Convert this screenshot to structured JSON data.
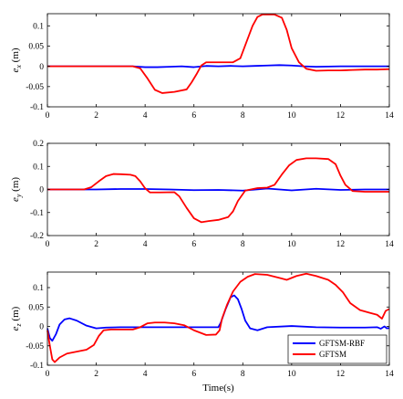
{
  "figure": {
    "xlabel": "Time(s)",
    "legend": {
      "placement": "bottom-right",
      "entries": [
        "GFTSM-RBF",
        "GFTSM"
      ]
    }
  },
  "colors": {
    "GFTSM-RBF": "#0000ff",
    "GFTSM": "#ff0000",
    "axes": "#000000",
    "background": "#ffffff"
  },
  "chart_data": [
    {
      "type": "line",
      "ylabel_sym": "e",
      "ylabel_sub": "x",
      "ylabel_unit": " (m)",
      "xlim": [
        0,
        14
      ],
      "ylim": [
        -0.1,
        0.13
      ],
      "xticks": [
        0,
        2,
        4,
        6,
        8,
        10,
        12,
        14
      ],
      "yticks": [
        -0.1,
        -0.05,
        0,
        0.05,
        0.1
      ],
      "ytick_labels": [
        "-0.1",
        "-0.05",
        "0",
        "0.05",
        "0.1"
      ],
      "grid": false,
      "series": [
        {
          "name": "GFTSM",
          "x": [
            0,
            3.5,
            3.8,
            4.1,
            4.4,
            4.7,
            5.2,
            5.7,
            5.9,
            6.1,
            6.3,
            6.5,
            6.8,
            7.3,
            7.6,
            7.9,
            8.15,
            8.4,
            8.6,
            8.8,
            9.0,
            9.3,
            9.6,
            9.8,
            10.0,
            10.3,
            10.6,
            11.0,
            11.5,
            12.0,
            12.5,
            13.0,
            13.5,
            14.0
          ],
          "y": [
            0,
            0,
            -0.005,
            -0.03,
            -0.058,
            -0.066,
            -0.063,
            -0.057,
            -0.04,
            -0.02,
            0.002,
            0.01,
            0.01,
            0.01,
            0.01,
            0.02,
            0.06,
            0.1,
            0.122,
            0.128,
            0.128,
            0.128,
            0.12,
            0.09,
            0.045,
            0.01,
            -0.006,
            -0.011,
            -0.01,
            -0.01,
            -0.009,
            -0.008,
            -0.008,
            -0.007
          ]
        },
        {
          "name": "GFTSM-RBF",
          "x": [
            0,
            3.5,
            4.0,
            4.5,
            5.0,
            5.5,
            6.0,
            6.5,
            7.0,
            7.5,
            8.0,
            8.5,
            9.0,
            9.5,
            10.0,
            10.5,
            11.0,
            12.0,
            13.0,
            14.0
          ],
          "y": [
            0,
            0,
            -0.002,
            -0.002,
            -0.001,
            0,
            -0.002,
            0.001,
            0,
            0.001,
            0,
            0.001,
            0.002,
            0.003,
            0.002,
            0,
            -0.001,
            0,
            0,
            0
          ]
        }
      ]
    },
    {
      "type": "line",
      "ylabel_sym": "e",
      "ylabel_sub": "y",
      "ylabel_unit": " (m)",
      "xlim": [
        0,
        14
      ],
      "ylim": [
        -0.2,
        0.2
      ],
      "xticks": [
        0,
        2,
        4,
        6,
        8,
        10,
        12,
        14
      ],
      "yticks": [
        -0.2,
        -0.1,
        0,
        0.1,
        0.2
      ],
      "ytick_labels": [
        "-0.2",
        "-0.1",
        "0",
        "0.1",
        "0.2"
      ],
      "grid": false,
      "series": [
        {
          "name": "GFTSM",
          "x": [
            0,
            1.5,
            1.8,
            2.1,
            2.4,
            2.7,
            3.0,
            3.4,
            3.6,
            3.8,
            4.0,
            4.2,
            4.6,
            5.2,
            5.4,
            5.7,
            6.0,
            6.3,
            6.6,
            7.0,
            7.4,
            7.6,
            7.8,
            8.1,
            8.6,
            9.0,
            9.3,
            9.6,
            9.9,
            10.2,
            10.6,
            11.0,
            11.5,
            11.8,
            12.0,
            12.2,
            12.5,
            13.0,
            13.5,
            14.0
          ],
          "y": [
            0,
            0,
            0.01,
            0.035,
            0.058,
            0.067,
            0.066,
            0.064,
            0.058,
            0.035,
            0.005,
            -0.013,
            -0.013,
            -0.012,
            -0.03,
            -0.08,
            -0.125,
            -0.142,
            -0.137,
            -0.132,
            -0.12,
            -0.095,
            -0.05,
            -0.005,
            0.006,
            0.008,
            0.02,
            0.065,
            0.105,
            0.128,
            0.135,
            0.135,
            0.132,
            0.11,
            0.06,
            0.02,
            -0.007,
            -0.01,
            -0.01,
            -0.01
          ]
        },
        {
          "name": "GFTSM-RBF",
          "x": [
            0,
            2,
            3,
            4,
            5,
            6,
            7,
            8,
            9,
            10,
            11,
            12,
            13,
            14
          ],
          "y": [
            0,
            0,
            0.002,
            0.002,
            0,
            -0.003,
            -0.002,
            -0.005,
            0.004,
            -0.004,
            0.003,
            -0.002,
            0,
            0
          ]
        }
      ]
    },
    {
      "type": "line",
      "ylabel_sym": "e",
      "ylabel_sub": "z",
      "ylabel_unit": " (m)",
      "xlim": [
        0,
        14
      ],
      "ylim": [
        -0.1,
        0.14
      ],
      "xticks": [
        0,
        2,
        4,
        6,
        8,
        10,
        12,
        14
      ],
      "yticks": [
        -0.1,
        -0.05,
        0,
        0.05,
        0.1
      ],
      "ytick_labels": [
        "-0.1",
        "-0.05",
        "0",
        "0.05",
        "0.1"
      ],
      "grid": false,
      "series": [
        {
          "name": "GFTSM",
          "x": [
            0,
            0.1,
            0.2,
            0.3,
            0.5,
            0.8,
            1.2,
            1.6,
            1.9,
            2.1,
            2.3,
            2.6,
            3.0,
            3.5,
            3.8,
            4.1,
            4.4,
            4.8,
            5.2,
            5.6,
            6.0,
            6.5,
            6.9,
            7.05,
            7.15,
            7.35,
            7.6,
            7.9,
            8.2,
            8.5,
            9.0,
            9.5,
            9.8,
            10.2,
            10.6,
            11.0,
            11.5,
            11.8,
            12.1,
            12.4,
            12.8,
            13.2,
            13.5,
            13.7,
            13.85,
            14.0
          ],
          "y": [
            -0.01,
            -0.05,
            -0.085,
            -0.092,
            -0.08,
            -0.07,
            -0.065,
            -0.06,
            -0.048,
            -0.025,
            -0.01,
            -0.008,
            -0.008,
            -0.008,
            -0.002,
            0.008,
            0.01,
            0.01,
            0.008,
            0.003,
            -0.01,
            -0.022,
            -0.021,
            -0.01,
            0.02,
            0.055,
            0.09,
            0.115,
            0.128,
            0.135,
            0.133,
            0.125,
            0.12,
            0.13,
            0.136,
            0.13,
            0.12,
            0.107,
            0.088,
            0.06,
            0.042,
            0.035,
            0.03,
            0.02,
            0.04,
            0.045
          ]
        },
        {
          "name": "GFTSM-RBF",
          "x": [
            0,
            0.1,
            0.2,
            0.35,
            0.5,
            0.7,
            0.9,
            1.2,
            1.6,
            2.0,
            2.4,
            3.0,
            4.0,
            5.0,
            6.0,
            7.0,
            7.1,
            7.3,
            7.5,
            7.65,
            7.8,
            7.95,
            8.1,
            8.3,
            8.6,
            9.0,
            10.0,
            11.0,
            12.0,
            13.0,
            13.5,
            13.65,
            13.8,
            13.9,
            14.0
          ],
          "y": [
            -0.005,
            -0.03,
            -0.037,
            -0.02,
            0.005,
            0.018,
            0.021,
            0.015,
            0.002,
            -0.005,
            -0.003,
            -0.002,
            -0.002,
            -0.002,
            -0.002,
            -0.002,
            0.01,
            0.045,
            0.075,
            0.08,
            0.07,
            0.045,
            0.015,
            -0.005,
            -0.01,
            -0.002,
            0.001,
            -0.002,
            -0.003,
            -0.003,
            -0.002,
            -0.006,
            0.0,
            -0.005,
            -0.004
          ]
        }
      ]
    }
  ]
}
